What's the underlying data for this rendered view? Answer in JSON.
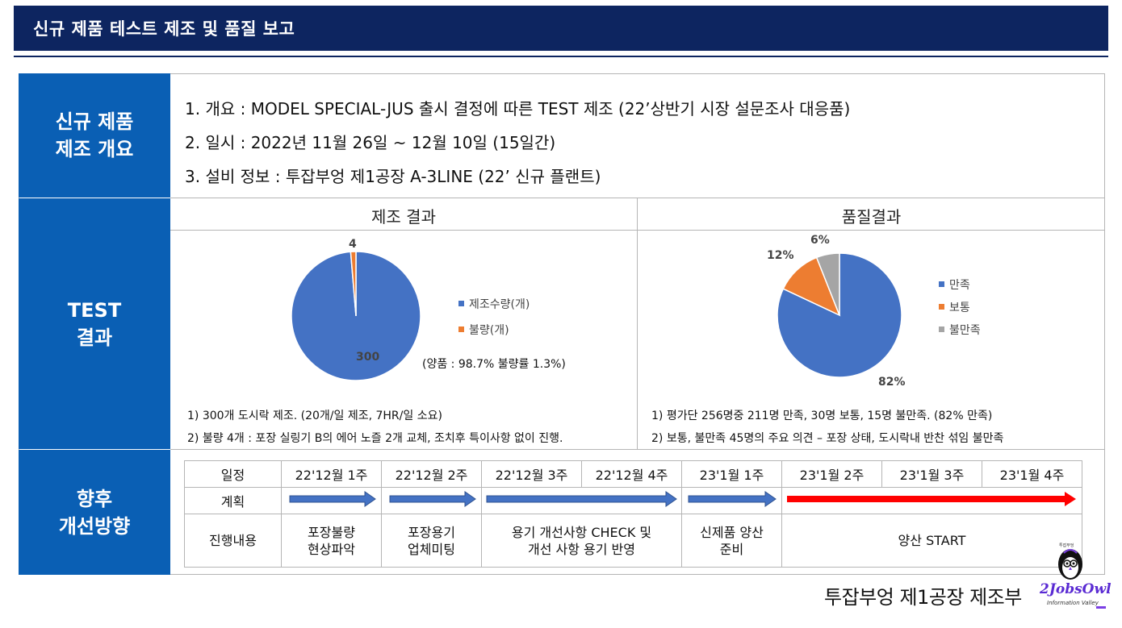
{
  "header": {
    "title": "신규 제품 테스트 제조 및 품질 보고"
  },
  "sections": {
    "overview": "신규 제품|제조 개요",
    "test": "TEST|결과",
    "plan": "향후|개선방향"
  },
  "overview": {
    "line1": "1. 개요 : MODEL SPECIAL-JUS 출시 결정에 따른 TEST 제조 (22’상반기 시장 설문조사 대응품)",
    "line2": "2. 일시 : 2022년 11월 26일 ~ 12월 10일 (15일간)",
    "line3": "3. 설비 정보 : 투잡부엉 제1공장 A-3LINE (22’ 신규 플랜트)"
  },
  "manufacture": {
    "title": "제조 결과",
    "yield_note": "(양품 : 98.7% 불량률 1.3%)",
    "note1": "1) 300개 도시락 제조. (20개/일 제조, 7HR/일 소요)",
    "note2": "2) 불량 4개 : 포장 실링기 B의 에어 노즐 2개 교체, 조치후 특이사항 없이 진행."
  },
  "quality": {
    "title": "품질결과",
    "note1": "1) 평가단 256명중 211명 만족, 30명 보통, 15명 불만족. (82% 만족)",
    "note2": "2) 보통, 불만족 45명의 주요 의견 – 포장 상태, 도시락내 반찬 섞임 불만족"
  },
  "chart_data": [
    {
      "type": "pie",
      "title": "제조 결과",
      "labels": [
        "제조수량(개)",
        "불량(개)"
      ],
      "values": [
        300,
        4
      ],
      "data_labels": [
        "300",
        "4"
      ],
      "colors": [
        "#4472c4",
        "#ed7d31"
      ],
      "legend_position": "right"
    },
    {
      "type": "pie",
      "title": "품질결과",
      "labels": [
        "만족",
        "보통",
        "불만족"
      ],
      "values": [
        82,
        12,
        6
      ],
      "data_labels": [
        "82%",
        "12%",
        "6%"
      ],
      "colors": [
        "#4472c4",
        "#ed7d31",
        "#a5a5a5"
      ],
      "legend_position": "right"
    }
  ],
  "schedule": {
    "row_labels": {
      "period": "일정",
      "plan": "계획",
      "progress": "진행내용"
    },
    "weeks": [
      "22'12월 1주",
      "22'12월 2주",
      "22'12월 3주",
      "22'12월 4주",
      "23'1월 1주",
      "23'1월 2주",
      "23'1월 3주",
      "23'1월 4주"
    ],
    "tasks": [
      "포장불량|현상파악",
      "포장용기|업체미팅",
      "용기 개선사항 CHECK 및|개선 사항 용기 반영",
      "신제품 양산|준비",
      "양산 START"
    ],
    "arrow_colors": {
      "done": "#4472c4",
      "future": "#ff0000"
    }
  },
  "footer": {
    "company": "투잡부엉 제1공장 제조부"
  },
  "logo": {
    "name": "2JobsOwl",
    "tagline": "Information Valley",
    "badge": "투잡부엉"
  }
}
